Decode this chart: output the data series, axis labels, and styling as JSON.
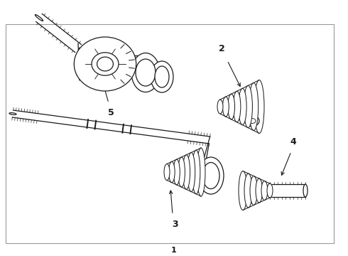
{
  "bg_color": "#ffffff",
  "line_color": "#1a1a1a",
  "border_color": "#999999",
  "label_1": "1",
  "label_2": "2",
  "label_3": "3",
  "label_4": "4",
  "label_5": "5",
  "fig_width": 4.9,
  "fig_height": 3.6,
  "dpi": 100,
  "xlim": [
    0,
    490
  ],
  "ylim": [
    0,
    360
  ]
}
